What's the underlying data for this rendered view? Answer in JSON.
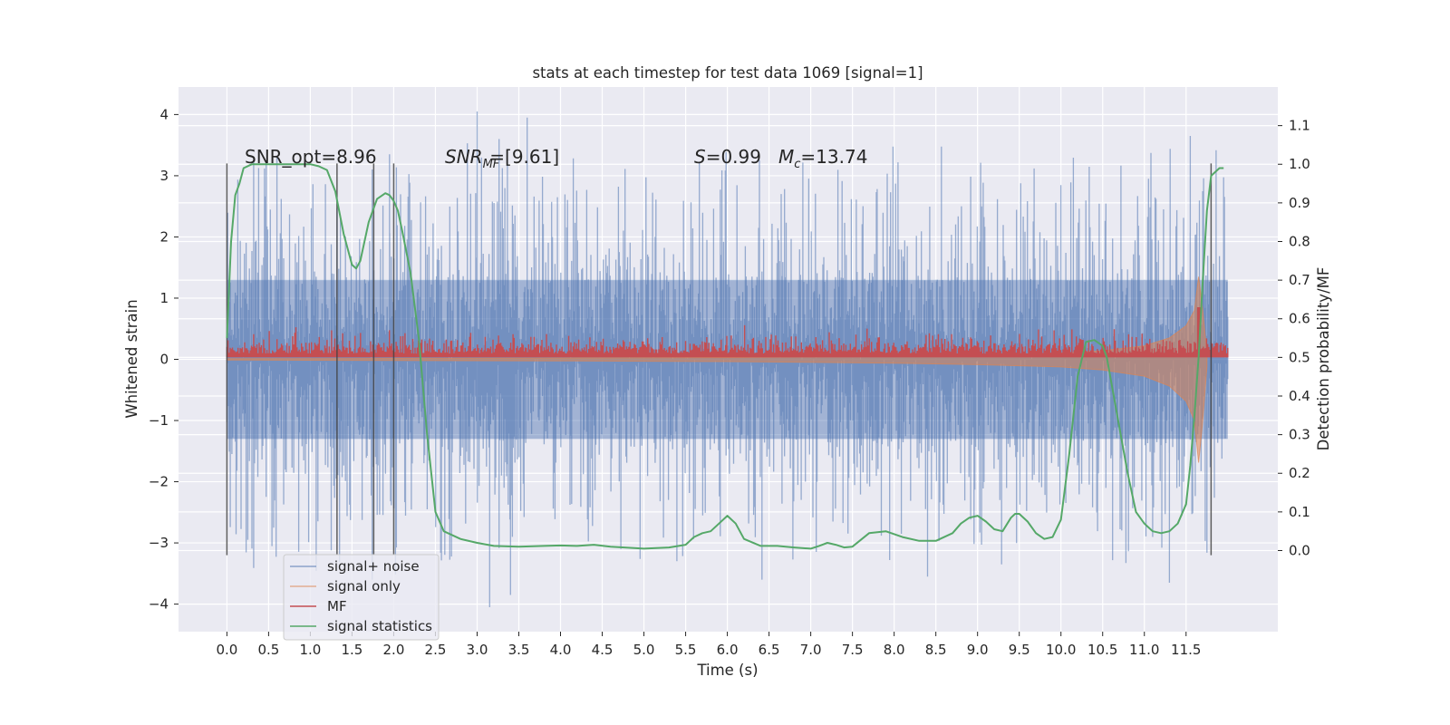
{
  "chart_data": {
    "type": "line",
    "title": "stats at each timestep for test data 1069 [signal=1]",
    "xlabel": "Time (s)",
    "ylabel": "Whitened strain",
    "ylabel_right": "Detection probability/MF",
    "xlim": [
      -0.58,
      12.6
    ],
    "ylim": [
      -4.45,
      4.45
    ],
    "ylim_right": [
      -0.21,
      1.2
    ],
    "x_ticks": [
      "0.0",
      "0.5",
      "1.0",
      "1.5",
      "2.0",
      "2.5",
      "3.0",
      "3.5",
      "4.0",
      "4.5",
      "5.0",
      "5.5",
      "6.0",
      "6.5",
      "7.0",
      "7.5",
      "8.0",
      "8.5",
      "9.0",
      "9.5",
      "10.0",
      "10.5",
      "11.0",
      "11.5"
    ],
    "y_ticks": [
      "−4",
      "−3",
      "−2",
      "−1",
      "0",
      "1",
      "2",
      "3",
      "4"
    ],
    "y_ticks_right": [
      "0.0",
      "0.1",
      "0.2",
      "0.3",
      "0.4",
      "0.5",
      "0.6",
      "0.7",
      "0.8",
      "0.9",
      "1.0",
      "1.1"
    ],
    "grid": true,
    "legend_position": "lower-left",
    "annotations": {
      "snr_opt": "SNR_opt=8.96",
      "snr_mf_base": "SNR",
      "snr_mf_sub": "MF",
      "snr_mf_rest": "=[9.61]",
      "s_label": "S",
      "s_value": "=0.99",
      "mc_label": "M",
      "mc_sub": "c",
      "mc_value": "=13.74"
    },
    "vertical_lines_x": [
      0.0,
      1.32,
      1.76,
      2.0,
      11.8
    ],
    "vertical_lines_range": [
      -3.2,
      3.2
    ],
    "series": [
      {
        "name": "signal+ noise",
        "color": "#4c72b0",
        "axis": "left",
        "style": "noise band",
        "t_range": [
          0.0,
          12.0
        ],
        "typical_amplitude": 1.3,
        "peak_max": 4.05,
        "peak_min": -4.05
      },
      {
        "name": "signal only",
        "color": "#dd8452",
        "axis": "left",
        "style": "chirp",
        "t_range": [
          0.0,
          11.78
        ],
        "x": [
          0,
          2,
          4,
          6,
          8,
          9,
          10,
          10.5,
          11,
          11.3,
          11.5,
          11.6,
          11.65,
          11.7,
          11.75
        ],
        "envelope": [
          0.01,
          0.015,
          0.02,
          0.03,
          0.05,
          0.07,
          0.1,
          0.14,
          0.22,
          0.35,
          0.55,
          0.8,
          1.35,
          0.8,
          0.1
        ]
      },
      {
        "name": "MF",
        "color": "#c44e52",
        "axis": "right",
        "style": "noise band",
        "t_range": [
          0.0,
          12.0
        ],
        "base": 0.5,
        "typical_top": 0.535,
        "peak_top": 0.575,
        "spike_x": 11.65,
        "spike_top": 0.63
      },
      {
        "name": "signal statistics",
        "color": "#55a868",
        "axis": "right",
        "style": "line",
        "x": [
          0.0,
          0.05,
          0.1,
          0.15,
          0.2,
          0.3,
          0.5,
          0.8,
          1.0,
          1.1,
          1.2,
          1.3,
          1.4,
          1.5,
          1.55,
          1.6,
          1.7,
          1.8,
          1.9,
          1.95,
          2.0,
          2.05,
          2.1,
          2.2,
          2.3,
          2.4,
          2.5,
          2.6,
          2.8,
          3.0,
          3.2,
          3.5,
          3.8,
          4.0,
          4.2,
          4.4,
          4.6,
          5.0,
          5.3,
          5.5,
          5.6,
          5.7,
          5.8,
          5.9,
          6.0,
          6.1,
          6.2,
          6.4,
          6.6,
          6.8,
          7.0,
          7.1,
          7.2,
          7.3,
          7.4,
          7.5,
          7.7,
          7.9,
          8.1,
          8.3,
          8.5,
          8.7,
          8.8,
          8.9,
          9.0,
          9.1,
          9.2,
          9.3,
          9.4,
          9.45,
          9.5,
          9.6,
          9.7,
          9.8,
          9.9,
          10.0,
          10.1,
          10.2,
          10.3,
          10.4,
          10.5,
          10.55,
          10.6,
          10.7,
          10.8,
          10.9,
          11.0,
          11.1,
          11.2,
          11.3,
          11.4,
          11.5,
          11.55,
          11.6,
          11.65,
          11.7,
          11.75,
          11.8,
          11.85,
          11.9,
          11.95
        ],
        "values": [
          0.55,
          0.8,
          0.92,
          0.95,
          0.99,
          1.0,
          1.0,
          1.0,
          1.0,
          0.995,
          0.985,
          0.93,
          0.82,
          0.74,
          0.73,
          0.75,
          0.85,
          0.91,
          0.925,
          0.92,
          0.905,
          0.88,
          0.83,
          0.72,
          0.55,
          0.3,
          0.1,
          0.05,
          0.03,
          0.02,
          0.012,
          0.01,
          0.012,
          0.013,
          0.012,
          0.015,
          0.01,
          0.005,
          0.008,
          0.015,
          0.035,
          0.045,
          0.05,
          0.07,
          0.09,
          0.07,
          0.03,
          0.012,
          0.012,
          0.008,
          0.005,
          0.012,
          0.02,
          0.015,
          0.008,
          0.01,
          0.045,
          0.05,
          0.035,
          0.025,
          0.025,
          0.045,
          0.07,
          0.085,
          0.09,
          0.075,
          0.055,
          0.05,
          0.085,
          0.095,
          0.095,
          0.075,
          0.045,
          0.03,
          0.035,
          0.08,
          0.25,
          0.45,
          0.54,
          0.545,
          0.53,
          0.5,
          0.44,
          0.32,
          0.2,
          0.1,
          0.07,
          0.05,
          0.045,
          0.05,
          0.07,
          0.12,
          0.22,
          0.35,
          0.5,
          0.7,
          0.88,
          0.97,
          0.98,
          0.99,
          0.99
        ]
      }
    ]
  }
}
